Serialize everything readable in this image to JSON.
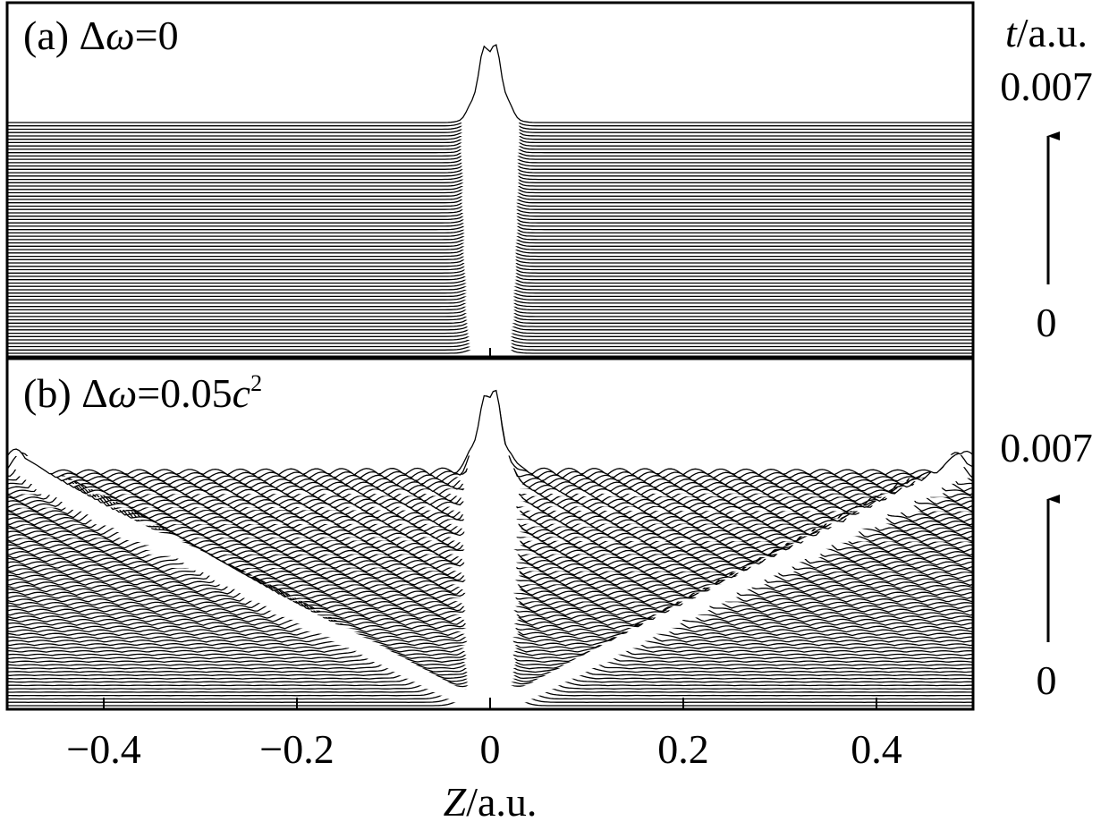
{
  "chart_data": [
    {
      "type": "line",
      "variant": "waterfall",
      "panel_label": "(a) Δω=0",
      "panel_prefix": "(a) Δ",
      "panel_symbol": "ω",
      "panel_suffix": "=0",
      "x": {
        "label_var": "Z",
        "label_unit": "/a.u.",
        "range": [
          -0.5,
          0.5
        ],
        "ticks": [
          -0.4,
          -0.2,
          0,
          0.2,
          0.4
        ]
      },
      "y": {
        "label_var": "t",
        "label_unit": "/a.u.",
        "range": [
          0,
          0.007
        ],
        "tick_labels": [
          "0",
          "0.007"
        ]
      },
      "trace_count": 70,
      "central_peak": {
        "center": 0,
        "width": 0.012
      },
      "side_fringes": false,
      "grid": false,
      "legend": "none"
    },
    {
      "type": "line",
      "variant": "waterfall",
      "panel_label": "(b) Δω=0.05c²",
      "panel_prefix": "(b) Δ",
      "panel_symbol": "ω",
      "panel_value": "=0.05",
      "panel_var": "c",
      "panel_power": "2",
      "x": {
        "label_var": "Z",
        "label_unit": "/a.u.",
        "range": [
          -0.5,
          0.5
        ],
        "ticks": [
          -0.4,
          -0.2,
          0,
          0.2,
          0.4
        ]
      },
      "y": {
        "tick_labels": [
          "0",
          "0.007"
        ],
        "range": [
          0,
          0.007
        ]
      },
      "trace_count": 70,
      "central_peak": {
        "center": 0,
        "width": 0.012
      },
      "side_fringes": true,
      "grid": false,
      "legend": "none"
    }
  ],
  "x_tick_labels": [
    "−0.4",
    "−0.2",
    "0",
    "0.2",
    "0.4"
  ],
  "x_axis_title_var": "Z",
  "x_axis_title_unit": "/a.u.",
  "y_axis_title_var": "t",
  "y_axis_title_unit": "/a.u.",
  "y_top_label": "0.007",
  "y_bottom_label": "0"
}
